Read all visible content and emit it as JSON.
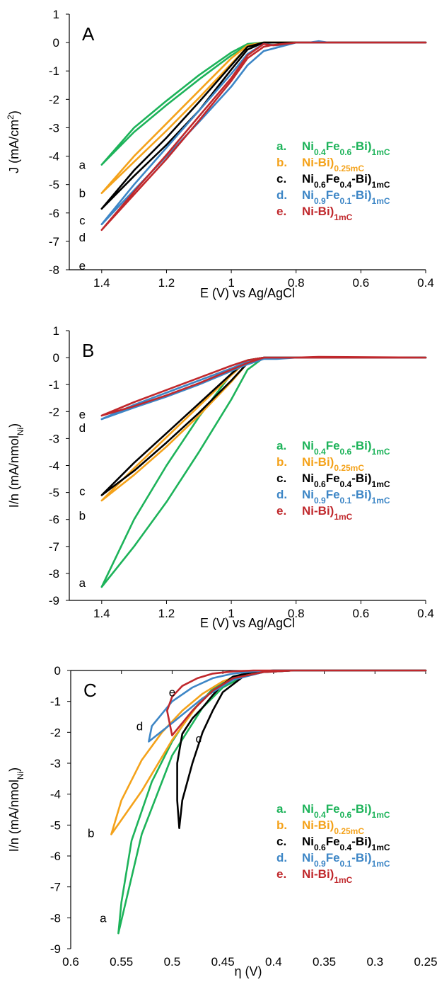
{
  "figure": {
    "colors": {
      "a": "#1db35a",
      "b": "#f4a21a",
      "c": "#000000",
      "d": "#3d86c6",
      "e": "#c0282c",
      "axis": "#000000"
    },
    "legend_entries": [
      {
        "key": "a",
        "marker": "a.",
        "color": "#1db35a",
        "parts": [
          [
            "Ni",
            ""
          ],
          [
            "0.4",
            "sub"
          ],
          [
            "Fe",
            ""
          ],
          [
            "0.6",
            "sub"
          ],
          [
            "-Bi)",
            ""
          ],
          [
            "1mC",
            "sub"
          ]
        ]
      },
      {
        "key": "b",
        "marker": "b.",
        "color": "#f4a21a",
        "parts": [
          [
            "Ni-Bi)",
            ""
          ],
          [
            "0.25mC",
            "sub"
          ]
        ]
      },
      {
        "key": "c",
        "marker": "c.",
        "color": "#000000",
        "parts": [
          [
            "Ni",
            ""
          ],
          [
            "0.6",
            "sub"
          ],
          [
            "Fe",
            ""
          ],
          [
            "0.4",
            "sub"
          ],
          [
            "-Bi)",
            ""
          ],
          [
            "1mC",
            "sub"
          ]
        ]
      },
      {
        "key": "d",
        "marker": "d.",
        "color": "#3d86c6",
        "parts": [
          [
            "Ni",
            ""
          ],
          [
            "0.9",
            "sub"
          ],
          [
            "Fe",
            ""
          ],
          [
            "0.1",
            "sub"
          ],
          [
            "-Bi)",
            ""
          ],
          [
            "1mC",
            "sub"
          ]
        ]
      },
      {
        "key": "e",
        "marker": "e.",
        "color": "#c0282c",
        "parts": [
          [
            "Ni-Bi)",
            ""
          ],
          [
            "1mC",
            "sub"
          ]
        ]
      }
    ]
  },
  "chart_data": [
    {
      "type": "line",
      "panel_label": "A",
      "xlabel": "E (V) vs Ag/AgCl",
      "ylabel_parts": [
        [
          "J (mA/cm",
          ""
        ],
        [
          "2",
          "sup"
        ],
        [
          ")",
          ""
        ]
      ],
      "xlim": [
        1.5,
        0.4
      ],
      "ylim": [
        -8,
        1
      ],
      "x_reversed": true,
      "xticks": [
        {
          "v": 1.4,
          "label": "1.4"
        },
        {
          "v": 1.2,
          "label": "1.2"
        },
        {
          "v": 1.0,
          "label": "1"
        },
        {
          "v": 0.8,
          "label": "0.8"
        },
        {
          "v": 0.6,
          "label": "0.6"
        },
        {
          "v": 0.4,
          "label": "0.4"
        }
      ],
      "yticks": [
        {
          "v": 1,
          "label": "1"
        },
        {
          "v": 0,
          "label": "0"
        },
        {
          "v": -1,
          "label": "-1"
        },
        {
          "v": -2,
          "label": "-2"
        },
        {
          "v": -3,
          "label": "-3"
        },
        {
          "v": -4,
          "label": "-4"
        },
        {
          "v": -5,
          "label": "-5"
        },
        {
          "v": -6,
          "label": "-6"
        },
        {
          "v": -7,
          "label": "-7"
        },
        {
          "v": -8,
          "label": "-8"
        }
      ],
      "grid": false,
      "legend_position": "center-right",
      "series": [
        {
          "key": "a",
          "x": [
            0.4,
            0.8,
            0.9,
            0.95,
            1.0,
            1.1,
            1.2,
            1.3,
            1.4,
            1.3,
            1.2,
            1.1,
            1.0,
            0.95,
            0.9,
            0.8,
            0.4
          ],
          "y": [
            0,
            0,
            0,
            -0.1,
            -0.45,
            -1.3,
            -2.2,
            -3.15,
            -4.3,
            -3.0,
            -2.05,
            -1.15,
            -0.35,
            -0.05,
            0,
            0,
            0
          ]
        },
        {
          "key": "b",
          "x": [
            0.4,
            0.8,
            0.9,
            0.95,
            1.0,
            1.1,
            1.2,
            1.3,
            1.4,
            1.3,
            1.2,
            1.1,
            1.0,
            0.95,
            0.9,
            0.8,
            0.4
          ],
          "y": [
            0,
            0,
            0,
            -0.15,
            -0.75,
            -1.95,
            -3.1,
            -4.2,
            -5.3,
            -4.0,
            -2.85,
            -1.7,
            -0.55,
            -0.1,
            0,
            0,
            0
          ]
        },
        {
          "key": "c",
          "x": [
            0.4,
            0.8,
            0.9,
            0.95,
            1.0,
            1.1,
            1.2,
            1.3,
            1.4,
            1.3,
            1.2,
            1.1,
            1.0,
            0.95,
            0.9,
            0.8,
            0.4
          ],
          "y": [
            0,
            0,
            0,
            -0.25,
            -0.95,
            -2.4,
            -3.6,
            -4.7,
            -5.85,
            -4.5,
            -3.35,
            -2.1,
            -0.8,
            -0.15,
            0,
            0,
            0
          ]
        },
        {
          "key": "d",
          "x": [
            0.4,
            0.7,
            0.73,
            0.76,
            0.8,
            0.85,
            0.9,
            0.95,
            1.0,
            1.1,
            1.2,
            1.3,
            1.4,
            1.3,
            1.2,
            1.1,
            1.0,
            0.95,
            0.9,
            0.86,
            0.8,
            0.4
          ],
          "y": [
            0,
            0,
            0.05,
            0,
            0,
            -0.15,
            -0.3,
            -0.8,
            -1.55,
            -2.8,
            -4.0,
            -5.2,
            -6.4,
            -5.0,
            -3.7,
            -2.4,
            -1.1,
            -0.4,
            -0.05,
            -0.1,
            0,
            0
          ]
        },
        {
          "key": "e",
          "x": [
            0.4,
            0.8,
            0.88,
            0.9,
            0.95,
            1.0,
            1.1,
            1.2,
            1.3,
            1.4,
            1.3,
            1.2,
            1.1,
            1.0,
            0.95,
            0.9,
            0.87,
            0.8,
            0.4
          ],
          "y": [
            0,
            0,
            -0.1,
            -0.15,
            -0.55,
            -1.35,
            -2.75,
            -4.1,
            -5.35,
            -6.6,
            -5.25,
            -3.95,
            -2.6,
            -1.25,
            -0.45,
            -0.05,
            -0.1,
            0,
            0
          ]
        }
      ],
      "curve_labels": [
        {
          "key": "a",
          "text": "a",
          "x": 1.46,
          "y": -4.3
        },
        {
          "key": "b",
          "text": "b",
          "x": 1.46,
          "y": -5.3
        },
        {
          "key": "c",
          "text": "c",
          "x": 1.46,
          "y": -6.25
        },
        {
          "key": "d",
          "text": "d",
          "x": 1.46,
          "y": -6.85
        },
        {
          "key": "e",
          "text": "e",
          "x": 1.46,
          "y": -7.85
        }
      ]
    },
    {
      "type": "line",
      "panel_label": "B",
      "xlabel": "E (V) vs Ag/AgCl",
      "ylabel_parts": [
        [
          "I/n (mA/nmol",
          ""
        ],
        [
          "Ni",
          "sub"
        ],
        [
          ")",
          ""
        ]
      ],
      "xlim": [
        1.5,
        0.4
      ],
      "ylim": [
        -9,
        1
      ],
      "x_reversed": true,
      "xticks": [
        {
          "v": 1.4,
          "label": "1.4"
        },
        {
          "v": 1.2,
          "label": "1.2"
        },
        {
          "v": 1.0,
          "label": "1"
        },
        {
          "v": 0.8,
          "label": "0.8"
        },
        {
          "v": 0.6,
          "label": "0.6"
        },
        {
          "v": 0.4,
          "label": "0.4"
        }
      ],
      "yticks": [
        {
          "v": 1,
          "label": "1"
        },
        {
          "v": 0,
          "label": "0"
        },
        {
          "v": -1,
          "label": "-1"
        },
        {
          "v": -2,
          "label": "-2"
        },
        {
          "v": -3,
          "label": "-3"
        },
        {
          "v": -4,
          "label": "-4"
        },
        {
          "v": -5,
          "label": "-5"
        },
        {
          "v": -6,
          "label": "-6"
        },
        {
          "v": -7,
          "label": "-7"
        },
        {
          "v": -8,
          "label": "-8"
        },
        {
          "v": -9,
          "label": "-9"
        }
      ],
      "grid": false,
      "legend_position": "center-right",
      "series": [
        {
          "key": "a",
          "x": [
            0.4,
            0.8,
            0.9,
            0.95,
            1.0,
            1.1,
            1.2,
            1.3,
            1.4,
            1.3,
            1.2,
            1.1,
            1.0,
            0.95,
            0.9,
            0.8,
            0.4
          ],
          "y": [
            0,
            0,
            0,
            -0.45,
            -1.55,
            -3.5,
            -5.35,
            -7.0,
            -8.5,
            -6.0,
            -4.0,
            -2.2,
            -0.6,
            -0.1,
            0,
            0,
            0
          ]
        },
        {
          "key": "b",
          "x": [
            0.4,
            0.8,
            0.9,
            0.95,
            1.0,
            1.1,
            1.2,
            1.3,
            1.4,
            1.3,
            1.2,
            1.1,
            1.0,
            0.95,
            0.9,
            0.8,
            0.4
          ],
          "y": [
            0,
            0,
            0,
            -0.2,
            -0.9,
            -2.15,
            -3.3,
            -4.35,
            -5.3,
            -4.1,
            -2.95,
            -1.8,
            -0.65,
            -0.1,
            0,
            0,
            0
          ]
        },
        {
          "key": "c",
          "x": [
            0.4,
            0.8,
            0.9,
            0.95,
            1.0,
            1.1,
            1.2,
            1.3,
            1.4,
            1.3,
            1.2,
            1.1,
            1.0,
            0.95,
            0.9,
            0.8,
            0.4
          ],
          "y": [
            0,
            0,
            0,
            -0.2,
            -0.85,
            -2.05,
            -3.15,
            -4.2,
            -5.1,
            -3.9,
            -2.8,
            -1.7,
            -0.6,
            -0.1,
            0,
            0,
            0
          ]
        },
        {
          "key": "d",
          "x": [
            0.4,
            0.8,
            0.86,
            0.9,
            0.95,
            1.0,
            1.1,
            1.2,
            1.3,
            1.4,
            1.3,
            1.2,
            1.1,
            1.0,
            0.95,
            0.9,
            0.8,
            0.4
          ],
          "y": [
            0,
            0,
            -0.05,
            -0.05,
            -0.25,
            -0.5,
            -1.0,
            -1.45,
            -1.85,
            -2.28,
            -1.75,
            -1.3,
            -0.85,
            -0.4,
            -0.15,
            0,
            0,
            0
          ]
        },
        {
          "key": "e",
          "x": [
            0.4,
            0.73,
            0.8,
            0.9,
            0.95,
            1.0,
            1.1,
            1.2,
            1.3,
            1.4,
            1.3,
            1.2,
            1.1,
            1.0,
            0.95,
            0.9,
            0.8,
            0.4
          ],
          "y": [
            0,
            0.03,
            0,
            0,
            -0.2,
            -0.45,
            -0.95,
            -1.4,
            -1.8,
            -2.15,
            -1.65,
            -1.2,
            -0.75,
            -0.3,
            -0.1,
            0,
            0,
            0
          ]
        }
      ],
      "curve_labels": [
        {
          "key": "e",
          "text": "e",
          "x": 1.46,
          "y": -2.1
        },
        {
          "key": "d",
          "text": "d",
          "x": 1.46,
          "y": -2.6
        },
        {
          "key": "c",
          "text": "c",
          "x": 1.46,
          "y": -4.95
        },
        {
          "key": "b",
          "text": "b",
          "x": 1.46,
          "y": -5.85
        },
        {
          "key": "a",
          "text": "a",
          "x": 1.46,
          "y": -8.35
        }
      ]
    },
    {
      "type": "line",
      "panel_label": "C",
      "xlabel": "η (V)",
      "ylabel_parts": [
        [
          "I/n (mA/nmol",
          ""
        ],
        [
          "Ni",
          "sub"
        ],
        [
          ")",
          ""
        ]
      ],
      "xlim": [
        0.6,
        0.25
      ],
      "ylim": [
        -9,
        0
      ],
      "x_reversed": true,
      "x_axis_at_top": true,
      "xticks": [
        {
          "v": 0.6,
          "label": "0.6"
        },
        {
          "v": 0.55,
          "label": "0.55"
        },
        {
          "v": 0.5,
          "label": "0.5"
        },
        {
          "v": 0.45,
          "label": "0.45"
        },
        {
          "v": 0.4,
          "label": "0.4"
        },
        {
          "v": 0.35,
          "label": "0.35"
        },
        {
          "v": 0.3,
          "label": "0.3"
        },
        {
          "v": 0.25,
          "label": "0.25"
        }
      ],
      "yticks": [
        {
          "v": 0,
          "label": "0"
        },
        {
          "v": -1,
          "label": "-1"
        },
        {
          "v": -2,
          "label": "-2"
        },
        {
          "v": -3,
          "label": "-3"
        },
        {
          "v": -4,
          "label": "-4"
        },
        {
          "v": -5,
          "label": "-5"
        },
        {
          "v": -6,
          "label": "-6"
        },
        {
          "v": -7,
          "label": "-7"
        },
        {
          "v": -8,
          "label": "-8"
        },
        {
          "v": -9,
          "label": "-9"
        }
      ],
      "grid": false,
      "legend_position": "center-right",
      "series": [
        {
          "key": "a",
          "x": [
            0.25,
            0.38,
            0.41,
            0.43,
            0.45,
            0.47,
            0.5,
            0.53,
            0.553,
            0.55,
            0.54,
            0.52,
            0.5,
            0.48,
            0.46,
            0.44,
            0.42,
            0.4,
            0.25
          ],
          "y": [
            0,
            0,
            -0.05,
            -0.2,
            -0.55,
            -1.2,
            -2.75,
            -5.3,
            -8.5,
            -7.5,
            -5.5,
            -3.6,
            -2.3,
            -1.3,
            -0.6,
            -0.2,
            -0.05,
            0,
            0
          ]
        },
        {
          "key": "b",
          "x": [
            0.25,
            0.38,
            0.41,
            0.44,
            0.47,
            0.5,
            0.53,
            0.56,
            0.55,
            0.53,
            0.51,
            0.49,
            0.47,
            0.45,
            0.43,
            0.41,
            0.38,
            0.25
          ],
          "y": [
            0,
            0,
            -0.05,
            -0.25,
            -0.9,
            -2.25,
            -3.9,
            -5.3,
            -4.2,
            -2.9,
            -2.0,
            -1.3,
            -0.75,
            -0.35,
            -0.12,
            -0.02,
            0,
            0
          ]
        },
        {
          "key": "c",
          "x": [
            0.25,
            0.38,
            0.41,
            0.43,
            0.45,
            0.46,
            0.47,
            0.48,
            0.49,
            0.493,
            0.495,
            0.495,
            0.49,
            0.48,
            0.47,
            0.46,
            0.45,
            0.44,
            0.42,
            0.4,
            0.38,
            0.25
          ],
          "y": [
            0,
            0,
            -0.05,
            -0.2,
            -0.7,
            -1.3,
            -2.0,
            -3.0,
            -4.2,
            -5.1,
            -4.2,
            -3.0,
            -2.05,
            -1.55,
            -1.2,
            -0.8,
            -0.45,
            -0.2,
            -0.05,
            0,
            0,
            0
          ]
        },
        {
          "key": "d",
          "x": [
            0.25,
            0.38,
            0.41,
            0.44,
            0.47,
            0.5,
            0.523,
            0.52,
            0.5,
            0.48,
            0.46,
            0.44,
            0.42,
            0.4,
            0.38,
            0.25
          ],
          "y": [
            0,
            0,
            -0.05,
            -0.3,
            -0.9,
            -1.7,
            -2.3,
            -1.8,
            -1.0,
            -0.55,
            -0.25,
            -0.1,
            -0.03,
            0,
            0,
            0
          ]
        },
        {
          "key": "e",
          "x": [
            0.25,
            0.38,
            0.41,
            0.44,
            0.46,
            0.48,
            0.5,
            0.505,
            0.5,
            0.49,
            0.475,
            0.46,
            0.44,
            0.42,
            0.4,
            0.38,
            0.25
          ],
          "y": [
            0,
            0,
            -0.05,
            -0.25,
            -0.65,
            -1.3,
            -2.1,
            -1.3,
            -0.85,
            -0.5,
            -0.25,
            -0.1,
            -0.03,
            0,
            0,
            0,
            0
          ]
        }
      ],
      "curve_labels": [
        {
          "key": "e",
          "text": "e",
          "x": 0.5,
          "y": -0.7
        },
        {
          "key": "d",
          "text": "d",
          "x": 0.532,
          "y": -1.8
        },
        {
          "key": "c",
          "text": "c",
          "x": 0.474,
          "y": -2.2
        },
        {
          "key": "b",
          "text": "b",
          "x": 0.58,
          "y": -5.25
        },
        {
          "key": "a",
          "text": "a",
          "x": 0.568,
          "y": -8.0
        }
      ]
    }
  ]
}
